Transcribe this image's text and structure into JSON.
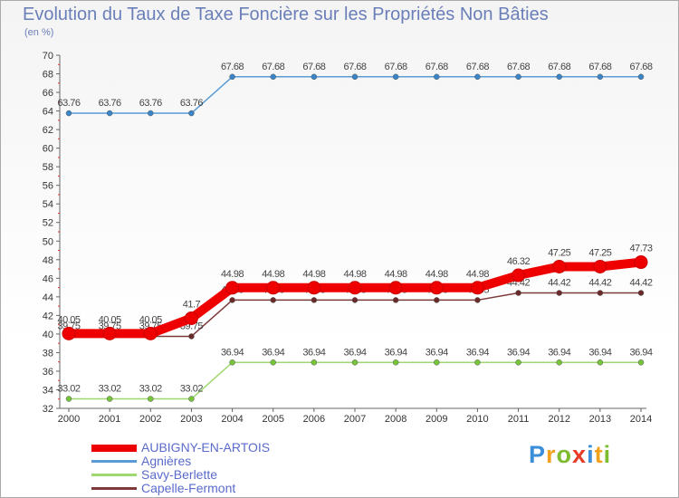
{
  "title": "Evolution du Taux de Taxe Foncière sur les Propriétés Non Bâties",
  "subtitle": "(en %)",
  "logo": {
    "p": "P",
    "r": "r",
    "o": "o",
    "x": "x",
    "i": "i",
    "t": "t",
    "i2": "i"
  },
  "chart_data": {
    "type": "line",
    "title": "Evolution du Taux de Taxe Foncière sur les Propriétés Non Bâties",
    "ylabel": "(en %)",
    "xlabel": "",
    "ylim": [
      32,
      70
    ],
    "yticks": [
      32,
      34,
      36,
      38,
      40,
      42,
      44,
      46,
      48,
      50,
      52,
      54,
      56,
      58,
      60,
      62,
      64,
      66,
      68,
      70
    ],
    "categories": [
      "2000",
      "2001",
      "2002",
      "2003",
      "2004",
      "2005",
      "2006",
      "2007",
      "2008",
      "2009",
      "2010",
      "2011",
      "2012",
      "2013",
      "2014"
    ],
    "grid": false,
    "series": [
      {
        "name": "Agnières",
        "color": "#5b9bd5",
        "marker": "#3a85c8",
        "labels": [
          "63.76",
          "63.76",
          "63.76",
          "63.76",
          "67.68",
          "67.68",
          "67.68",
          "67.68",
          "67.68",
          "67.68",
          "67.68",
          "67.68",
          "67.68",
          "67.68",
          "67.68"
        ],
        "values": [
          63.76,
          63.76,
          63.76,
          63.76,
          67.68,
          67.68,
          67.68,
          67.68,
          67.68,
          67.68,
          67.68,
          67.68,
          67.68,
          67.68,
          67.68
        ]
      },
      {
        "name": "Savy-Berlette",
        "color": "#9fd870",
        "marker": "#77c43a",
        "labels": [
          "33.02",
          "33.02",
          "33.02",
          "33.02",
          "36.94",
          "36.94",
          "36.94",
          "36.94",
          "36.94",
          "36.94",
          "36.94",
          "36.94",
          "36.94",
          "36.94",
          "36.94"
        ],
        "values": [
          33.02,
          33.02,
          33.02,
          33.02,
          36.94,
          36.94,
          36.94,
          36.94,
          36.94,
          36.94,
          36.94,
          36.94,
          36.94,
          36.94,
          36.94
        ]
      },
      {
        "name": "Capelle-Fermont",
        "color": "#7d3a3a",
        "marker": "#6b2a2a",
        "labels": [
          "39.75",
          "39.75",
          "39.75",
          "39.75",
          "43.65",
          "43.65",
          "43.65",
          "43.65",
          "43.65",
          "43.65",
          "43.65",
          "44.42",
          "44.42",
          "44.42",
          "44.42"
        ],
        "values": [
          39.75,
          39.75,
          39.75,
          39.75,
          43.65,
          43.65,
          43.65,
          43.65,
          43.65,
          43.65,
          43.65,
          44.42,
          44.42,
          44.42,
          44.42
        ]
      },
      {
        "name": "AUBIGNY-EN-ARTOIS",
        "color": "#ee0000",
        "marker": "#ee0000",
        "thick": true,
        "labels": [
          "40.05",
          "40.05",
          "40.05",
          "41.7",
          "44.98",
          "44.98",
          "44.98",
          "44.98",
          "44.98",
          "44.98",
          "44.98",
          "46.32",
          "47.25",
          "47.25",
          "47.73"
        ],
        "values": [
          40.05,
          40.05,
          40.05,
          41.7,
          44.98,
          44.98,
          44.98,
          44.98,
          44.98,
          44.98,
          44.98,
          46.32,
          47.25,
          47.25,
          47.73
        ]
      }
    ],
    "legend": [
      {
        "label": "AUBIGNY-EN-ARTOIS",
        "color": "#ee0000"
      },
      {
        "label": "Agnières",
        "color": "#5b9bd5"
      },
      {
        "label": "Savy-Berlette",
        "color": "#9fd870"
      },
      {
        "label": "Capelle-Fermont",
        "color": "#7d3a3a"
      }
    ]
  }
}
